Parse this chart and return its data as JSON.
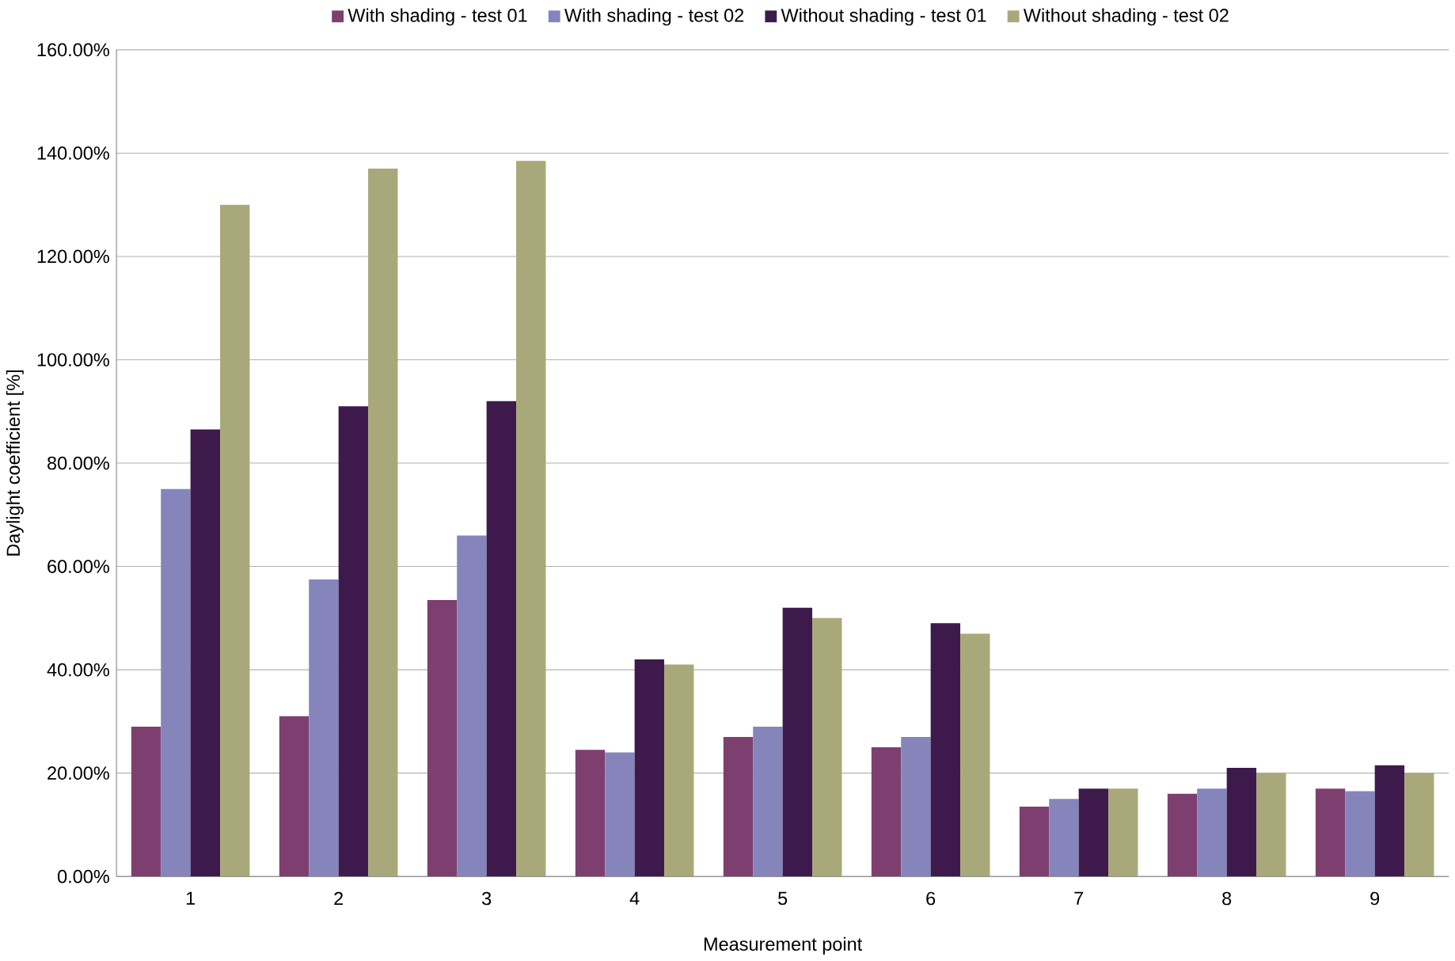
{
  "chart_data": {
    "type": "bar",
    "xlabel": "Measurement point",
    "ylabel": "Daylight coefficient [%]",
    "categories": [
      "1",
      "2",
      "3",
      "4",
      "5",
      "6",
      "7",
      "8",
      "9"
    ],
    "series": [
      {
        "name": "With shading - test 01",
        "color": "#7d3f70",
        "values": [
          29,
          31,
          53.5,
          24.5,
          27,
          25,
          13.5,
          16,
          17
        ]
      },
      {
        "name": "With shading - test 02",
        "color": "#8585bb",
        "values": [
          75,
          57.5,
          66,
          24,
          29,
          27,
          15,
          17,
          16.5
        ]
      },
      {
        "name": "Without shading - test 01",
        "color": "#3e1a4c",
        "values": [
          86.5,
          91,
          92,
          42,
          52,
          49,
          17,
          21,
          21.5
        ]
      },
      {
        "name": "Without shading - test 02",
        "color": "#a9a87a",
        "values": [
          130,
          137,
          138.5,
          41,
          50,
          47,
          17,
          20,
          20
        ]
      }
    ],
    "ylim": [
      0,
      160
    ],
    "yticks": [
      {
        "value": 0,
        "label": "0.00%"
      },
      {
        "value": 20,
        "label": "20.00%"
      },
      {
        "value": 40,
        "label": "40.00%"
      },
      {
        "value": 60,
        "label": "60.00%"
      },
      {
        "value": 80,
        "label": "80.00%"
      },
      {
        "value": 100,
        "label": "100.00%"
      },
      {
        "value": 120,
        "label": "120.00%"
      },
      {
        "value": 140,
        "label": "140.00%"
      },
      {
        "value": 160,
        "label": "160.00%"
      }
    ],
    "grid": "y",
    "legend": "top"
  }
}
